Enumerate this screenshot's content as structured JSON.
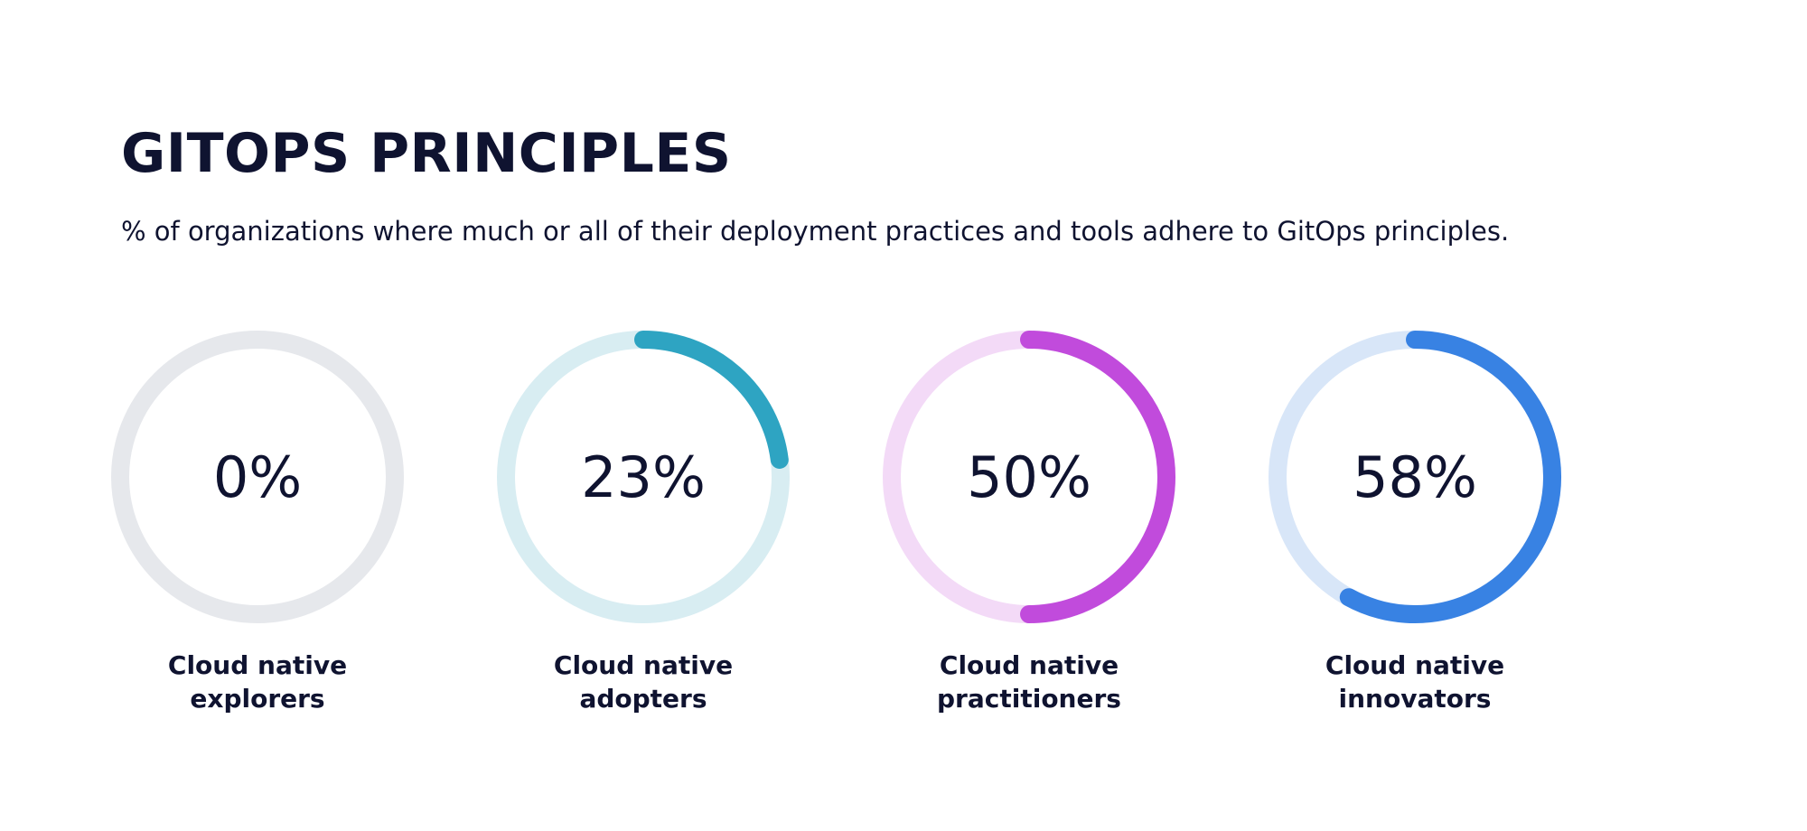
{
  "page": {
    "title": "GITOPS PRINCIPLES",
    "subtitle": "% of organizations where much or all of their deployment practices and tools adhere to GitOps principles."
  },
  "chart_data": {
    "type": "gauge",
    "title": "GITOPS PRINCIPLES",
    "subtitle": "% of organizations where much or all of their deployment practices and tools adhere to GitOps principles.",
    "unit": "%",
    "range": [
      0,
      100
    ],
    "items": [
      {
        "label_lines": [
          "Cloud native",
          "explorers"
        ],
        "value": 0,
        "value_label": "0%",
        "color": "#c9ccd4",
        "track_color": "#e6e8ec"
      },
      {
        "label_lines": [
          "Cloud native",
          "adopters"
        ],
        "value": 23,
        "value_label": "23%",
        "color": "#2ea4c2",
        "track_color": "#d8edf2"
      },
      {
        "label_lines": [
          "Cloud native",
          "practitioners"
        ],
        "value": 50,
        "value_label": "50%",
        "color": "#c14bdc",
        "track_color": "#f3daf7"
      },
      {
        "label_lines": [
          "Cloud native",
          "innovators"
        ],
        "value": 58,
        "value_label": "58%",
        "color": "#3882e3",
        "track_color": "#d8e6f8"
      }
    ]
  }
}
